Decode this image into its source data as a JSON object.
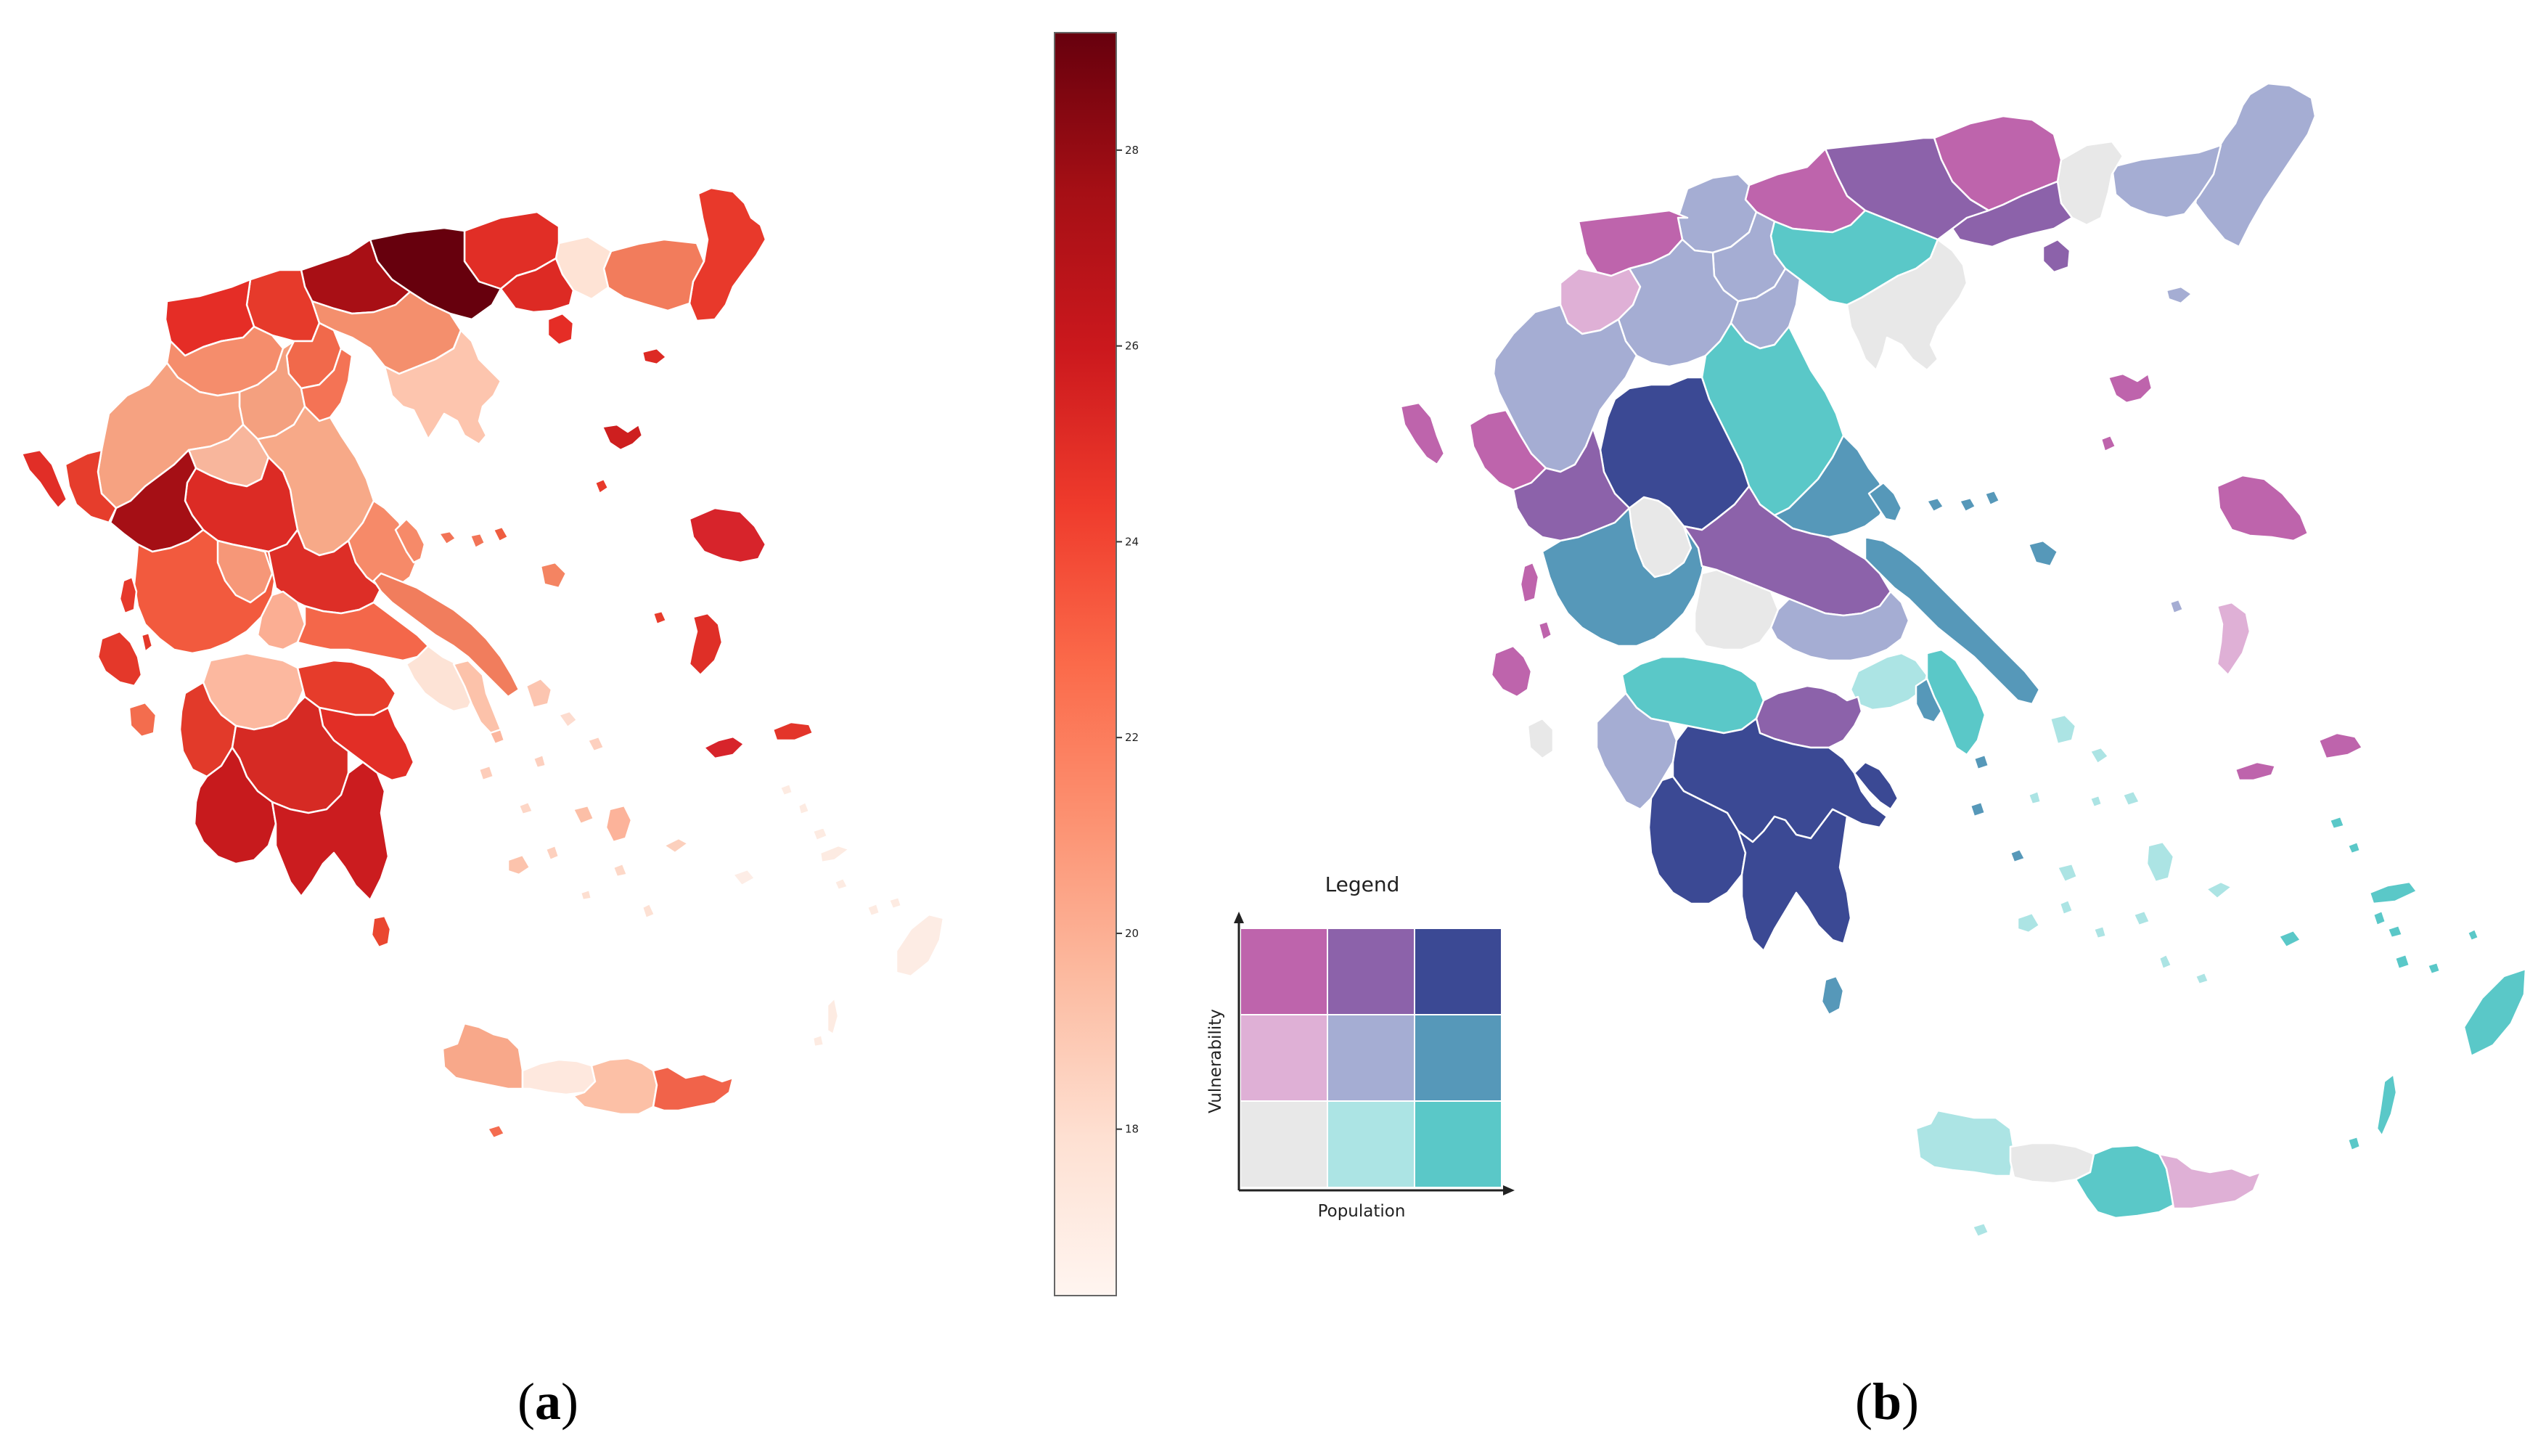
{
  "panel_a": {
    "caption_open": "(",
    "caption_letter": "a",
    "caption_close": ")",
    "colorbar": {
      "colormap": "Reds",
      "range": [
        16.3,
        29.2
      ],
      "ticks": [
        "18",
        "20",
        "22",
        "24",
        "26",
        "28"
      ],
      "tick_values": [
        18,
        20,
        22,
        24,
        26,
        28
      ],
      "colors": [
        "#fff5f0",
        "#fee0d2",
        "#fcbba1",
        "#fc9272",
        "#fb6a4a",
        "#ef3b2c",
        "#cb181d",
        "#a50f15",
        "#67000d"
      ]
    }
  },
  "panel_b": {
    "caption_open": "(",
    "caption_letter": "b",
    "caption_close": ")",
    "legend": {
      "title": "Legend",
      "x_label": "Population",
      "y_label": "Vulnerability",
      "grid_rows_top_to_bottom": [
        [
          "#be64ac",
          "#8c62aa",
          "#3b4994"
        ],
        [
          "#dfb0d6",
          "#a5add3",
          "#5698b9"
        ],
        [
          "#e8e8e8",
          "#ace4e4",
          "#5ac8c8"
        ]
      ]
    }
  }
}
